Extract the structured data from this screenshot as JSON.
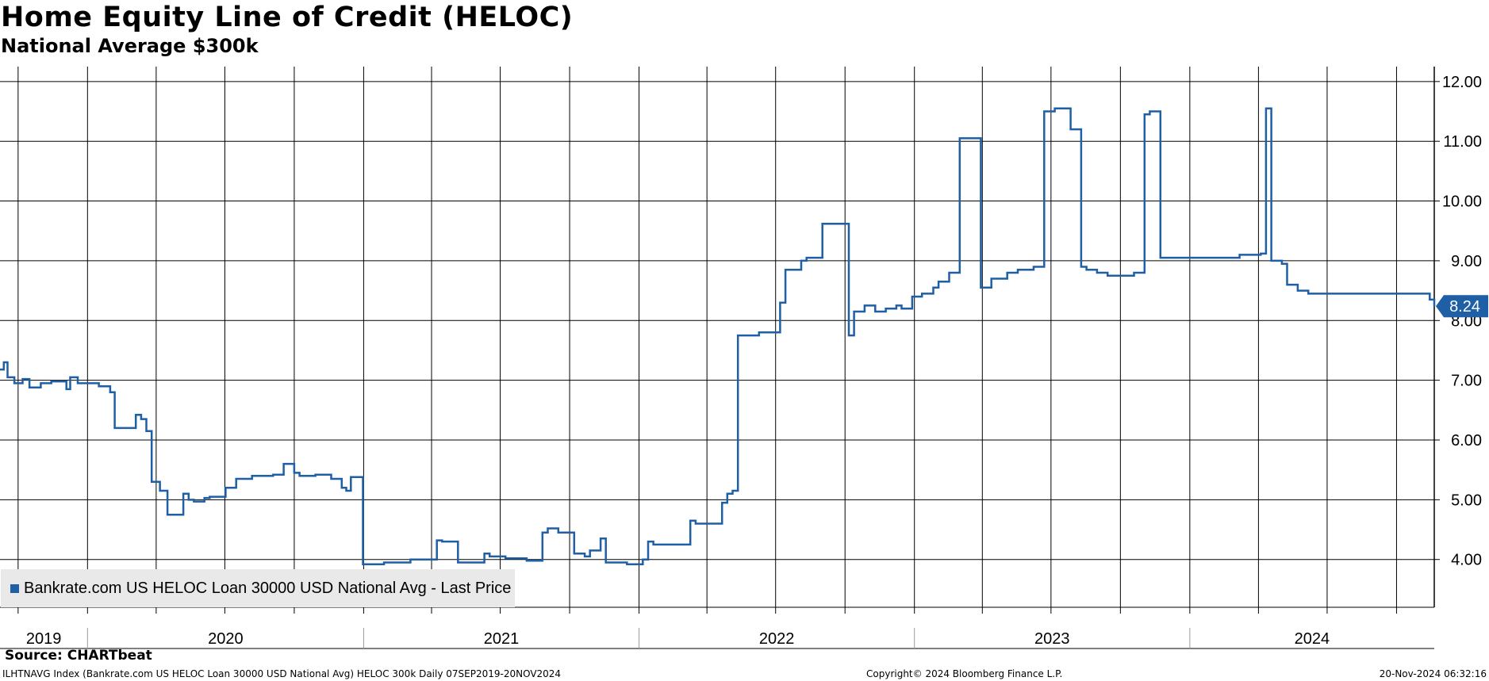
{
  "header": {
    "title": "Home Equity Line of Credit (HELOC)",
    "subtitle": "National Average $300k"
  },
  "legend": {
    "label": "Bankrate.com US HELOC Loan 30000 USD National Avg - Last Price"
  },
  "footer": {
    "source": "Source: CHARTbeat",
    "left": "ILHTNAVG Index (Bankrate.com US HELOC Loan 30000 USD National Avg) HELOC 300k  Daily 07SEP2019-20NOV2024",
    "center": "Copyright© 2024 Bloomberg Finance L.P.",
    "right": "20-Nov-2024 06:32:16"
  },
  "colors": {
    "line": "#1f5fa6",
    "grid": "#000000",
    "last_value_label_bg": "#1f5fa6"
  },
  "chart_data": {
    "type": "line",
    "title": "Home Equity Line of Credit (HELOC)",
    "subtitle": "National Average $300k",
    "xlabel": "",
    "ylabel": "",
    "x_range": [
      "2019-09-07",
      "2024-11-20"
    ],
    "ylim": [
      3.2,
      12.25
    ],
    "y_ticks": [
      "4.00",
      "5.00",
      "6.00",
      "7.00",
      "8.00",
      "9.00",
      "10.00",
      "11.00",
      "12.00"
    ],
    "x_year_labels": [
      "2019",
      "2020",
      "2021",
      "2022",
      "2023",
      "2024"
    ],
    "grid": true,
    "legend_position": "bottom-left",
    "last_value": "8.24",
    "series": [
      {
        "name": "Bankrate.com US HELOC Loan 30000 USD National Avg - Last Price",
        "x": [
          "2019-09-07",
          "2019-09-12",
          "2019-09-17",
          "2019-09-26",
          "2019-10-07",
          "2019-10-16",
          "2019-10-31",
          "2019-11-14",
          "2019-12-04",
          "2019-12-09",
          "2019-12-19",
          "2020-01-09",
          "2020-01-16",
          "2020-01-31",
          "2020-02-06",
          "2020-03-05",
          "2020-03-12",
          "2020-03-19",
          "2020-03-26",
          "2020-04-06",
          "2020-04-16",
          "2020-05-07",
          "2020-05-14",
          "2020-05-21",
          "2020-06-04",
          "2020-06-11",
          "2020-07-02",
          "2020-07-16",
          "2020-08-06",
          "2020-09-03",
          "2020-09-17",
          "2020-10-01",
          "2020-10-08",
          "2020-10-29",
          "2020-11-19",
          "2020-12-03",
          "2020-12-09",
          "2020-12-15",
          "2020-12-31",
          "2021-01-28",
          "2021-03-04",
          "2021-03-11",
          "2021-04-08",
          "2021-04-15",
          "2021-05-06",
          "2021-06-10",
          "2021-06-17",
          "2021-06-24",
          "2021-07-08",
          "2021-08-05",
          "2021-08-26",
          "2021-09-02",
          "2021-09-16",
          "2021-10-07",
          "2021-10-21",
          "2021-10-28",
          "2021-11-11",
          "2021-11-18",
          "2021-12-16",
          "2022-01-06",
          "2022-01-13",
          "2022-01-20",
          "2022-03-10",
          "2022-03-17",
          "2022-04-21",
          "2022-04-28",
          "2022-05-05",
          "2022-05-12",
          "2022-06-09",
          "2022-07-07",
          "2022-07-14",
          "2022-08-04",
          "2022-08-11",
          "2022-09-01",
          "2022-10-06",
          "2022-10-13",
          "2022-10-27",
          "2022-11-10",
          "2022-11-24",
          "2022-12-08",
          "2022-12-15",
          "2022-12-29",
          "2023-01-05",
          "2023-01-11",
          "2023-01-26",
          "2023-02-02",
          "2023-02-16",
          "2023-03-02",
          "2023-03-30",
          "2023-04-13",
          "2023-05-04",
          "2023-05-18",
          "2023-06-08",
          "2023-06-22",
          "2023-07-06",
          "2023-07-27",
          "2023-08-10",
          "2023-08-17",
          "2023-08-31",
          "2023-09-14",
          "2023-10-05",
          "2023-10-19",
          "2023-11-02",
          "2023-11-09",
          "2023-11-23",
          "2023-12-07",
          "2024-01-04",
          "2024-02-01",
          "2024-02-22",
          "2024-03-07",
          "2024-03-28",
          "2024-04-04",
          "2024-04-11",
          "2024-04-18",
          "2024-05-02",
          "2024-05-09",
          "2024-05-23",
          "2024-06-06",
          "2024-06-13",
          "2024-07-11",
          "2024-08-15",
          "2024-10-03",
          "2024-10-10",
          "2024-11-14",
          "2024-11-20"
        ],
        "y": [
          7.18,
          7.3,
          7.05,
          6.95,
          7.02,
          6.88,
          6.95,
          6.98,
          6.85,
          7.05,
          6.95,
          6.95,
          6.9,
          6.8,
          6.2,
          6.42,
          6.35,
          6.15,
          5.3,
          5.15,
          4.75,
          5.1,
          5.0,
          4.97,
          5.03,
          5.05,
          5.2,
          5.35,
          5.4,
          5.42,
          5.6,
          5.45,
          5.4,
          5.42,
          5.35,
          5.2,
          5.15,
          5.38,
          3.92,
          3.95,
          4.0,
          4.0,
          4.32,
          4.3,
          3.95,
          4.1,
          4.05,
          4.05,
          4.02,
          3.98,
          4.45,
          4.52,
          4.45,
          4.1,
          4.05,
          4.15,
          4.35,
          3.95,
          3.92,
          4.0,
          4.3,
          4.25,
          4.65,
          4.6,
          4.95,
          5.1,
          5.15,
          7.75,
          7.8,
          8.3,
          8.85,
          9.0,
          9.05,
          9.62,
          7.75,
          8.15,
          8.25,
          8.15,
          8.2,
          8.25,
          8.2,
          8.4,
          8.4,
          8.45,
          8.55,
          8.65,
          8.8,
          11.05,
          8.55,
          8.7,
          8.8,
          8.85,
          8.9,
          11.5,
          11.55,
          11.2,
          8.9,
          8.85,
          8.8,
          8.75,
          8.75,
          8.8,
          11.45,
          11.5,
          9.05,
          9.05,
          9.05,
          9.05,
          9.05,
          9.1,
          9.1,
          9.12,
          11.55,
          9.0,
          8.95,
          8.6,
          8.5,
          8.45,
          8.45,
          8.45,
          8.45,
          8.45,
          8.45,
          8.35,
          8.24
        ]
      }
    ]
  }
}
